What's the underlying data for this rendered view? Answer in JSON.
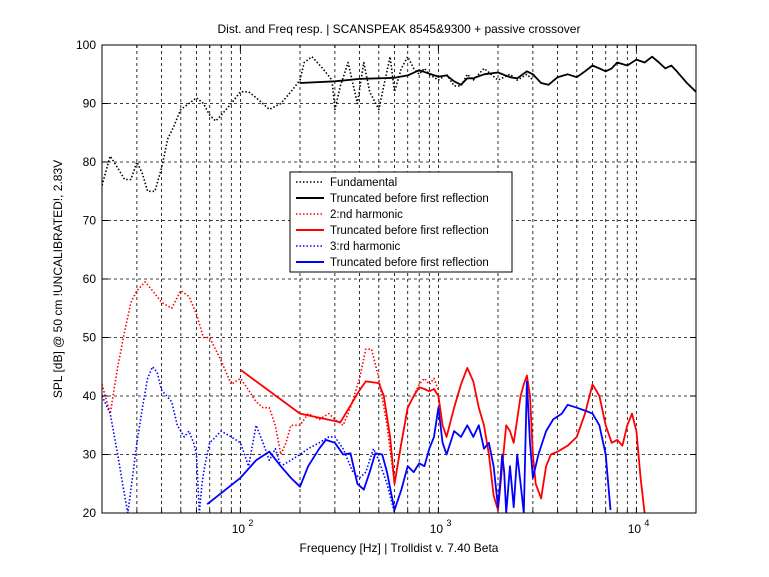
{
  "chart_data": {
    "type": "line",
    "title": "Dist. and Freq resp.  | SCANSPEAK 8545&9300 + passive crossover",
    "xlabel": "Frequency [Hz] | Trolldist v. 7.40 Beta",
    "ylabel": "SPL [dB] @ 50 cm !UNCALIBRATED!, 2.83V",
    "x_scale": "log",
    "xlim": [
      20,
      20000
    ],
    "ylim": [
      20,
      100
    ],
    "grid": true,
    "legend_position": "center",
    "y_ticks": [
      "20",
      "30",
      "40",
      "50",
      "60",
      "70",
      "80",
      "90",
      "100"
    ],
    "x_tick_bases": [
      "10",
      "10",
      "10"
    ],
    "x_tick_exps": [
      "2",
      "3",
      "4"
    ],
    "series": [
      {
        "name": "Fundamental",
        "color": "#000000",
        "style": "dotted",
        "points": [
          [
            20,
            76
          ],
          [
            22,
            81
          ],
          [
            24,
            79
          ],
          [
            26,
            77
          ],
          [
            28,
            77
          ],
          [
            30,
            80
          ],
          [
            32,
            78
          ],
          [
            34,
            75
          ],
          [
            37,
            75
          ],
          [
            40,
            79
          ],
          [
            43,
            84
          ],
          [
            46,
            86
          ],
          [
            50,
            89
          ],
          [
            55,
            90
          ],
          [
            60,
            91
          ],
          [
            65,
            90
          ],
          [
            70,
            88
          ],
          [
            75,
            87
          ],
          [
            80,
            88
          ],
          [
            90,
            90
          ],
          [
            100,
            92
          ],
          [
            110,
            92
          ],
          [
            120,
            91
          ],
          [
            140,
            89
          ],
          [
            160,
            90
          ],
          [
            180,
            92
          ],
          [
            200,
            94
          ],
          [
            210,
            97
          ],
          [
            230,
            98
          ],
          [
            260,
            96
          ],
          [
            290,
            94
          ],
          [
            300,
            89
          ],
          [
            320,
            93
          ],
          [
            350,
            97
          ],
          [
            390,
            90
          ],
          [
            420,
            97
          ],
          [
            450,
            92
          ],
          [
            500,
            89
          ],
          [
            530,
            93
          ],
          [
            570,
            98
          ],
          [
            600,
            92
          ],
          [
            650,
            96
          ],
          [
            700,
            98
          ],
          [
            750,
            96
          ],
          [
            800,
            95
          ],
          [
            850,
            96
          ],
          [
            900,
            95
          ],
          [
            1000,
            94
          ],
          [
            1100,
            95
          ],
          [
            1200,
            93
          ],
          [
            1300,
            93
          ],
          [
            1400,
            95
          ],
          [
            1500,
            94
          ],
          [
            1700,
            96
          ],
          [
            2000,
            94
          ],
          [
            2300,
            95
          ],
          [
            2500,
            94
          ],
          [
            2800,
            95
          ],
          [
            3000,
            94
          ]
        ]
      },
      {
        "name": "Truncated before first reflection",
        "color": "#000000",
        "style": "solid",
        "points": [
          [
            200,
            93.5
          ],
          [
            300,
            93.8
          ],
          [
            400,
            94.2
          ],
          [
            500,
            94.3
          ],
          [
            600,
            94.4
          ],
          [
            700,
            94.8
          ],
          [
            800,
            95.7
          ],
          [
            900,
            95.1
          ],
          [
            1000,
            94.6
          ],
          [
            1100,
            94.8
          ],
          [
            1200,
            93.8
          ],
          [
            1300,
            93.2
          ],
          [
            1400,
            94.3
          ],
          [
            1500,
            94.3
          ],
          [
            1700,
            95
          ],
          [
            2000,
            95.3
          ],
          [
            2300,
            94.5
          ],
          [
            2500,
            94.3
          ],
          [
            2800,
            95.5
          ],
          [
            3000,
            95
          ],
          [
            3300,
            93.5
          ],
          [
            3600,
            93.2
          ],
          [
            4000,
            94.5
          ],
          [
            4500,
            95
          ],
          [
            5000,
            94.5
          ],
          [
            5500,
            95.5
          ],
          [
            6000,
            96.5
          ],
          [
            6500,
            96
          ],
          [
            7000,
            95.5
          ],
          [
            7500,
            96
          ],
          [
            8000,
            97
          ],
          [
            9000,
            96.5
          ],
          [
            10000,
            97.5
          ],
          [
            11000,
            97
          ],
          [
            12000,
            98
          ],
          [
            13000,
            97
          ],
          [
            14000,
            96
          ],
          [
            15000,
            96.5
          ],
          [
            16000,
            95.5
          ],
          [
            18000,
            93.5
          ],
          [
            20000,
            92
          ]
        ]
      },
      {
        "name": "2:nd harmonic",
        "color": "#ff0000",
        "style": "dotted",
        "points": [
          [
            20,
            42
          ],
          [
            22,
            37
          ],
          [
            24,
            45
          ],
          [
            26,
            51
          ],
          [
            28,
            56
          ],
          [
            30,
            58
          ],
          [
            33,
            59.5
          ],
          [
            36,
            58
          ],
          [
            40,
            56
          ],
          [
            45,
            55
          ],
          [
            50,
            58
          ],
          [
            55,
            57
          ],
          [
            60,
            54
          ],
          [
            65,
            50
          ],
          [
            70,
            50
          ],
          [
            80,
            46
          ],
          [
            90,
            42
          ],
          [
            100,
            43
          ],
          [
            110,
            41
          ],
          [
            120,
            39
          ],
          [
            130,
            38
          ],
          [
            140,
            38
          ],
          [
            150,
            35
          ],
          [
            160,
            30
          ],
          [
            170,
            32
          ],
          [
            180,
            35
          ],
          [
            200,
            35
          ],
          [
            220,
            37
          ],
          [
            250,
            36
          ],
          [
            280,
            37
          ],
          [
            300,
            36
          ],
          [
            330,
            35
          ],
          [
            360,
            38
          ],
          [
            400,
            43
          ],
          [
            430,
            48
          ],
          [
            460,
            48
          ],
          [
            500,
            43
          ],
          [
            550,
            35
          ],
          [
            600,
            25
          ],
          [
            650,
            32
          ],
          [
            700,
            38
          ],
          [
            750,
            40
          ],
          [
            800,
            42
          ],
          [
            850,
            43
          ],
          [
            900,
            42
          ],
          [
            950,
            43
          ],
          [
            1000,
            41
          ]
        ]
      },
      {
        "name": "Truncated before first reflection",
        "color": "#ff0000",
        "style": "solid",
        "points": [
          [
            100,
            44.5
          ],
          [
            200,
            37
          ],
          [
            320,
            35.5
          ],
          [
            400,
            41
          ],
          [
            430,
            42.5
          ],
          [
            500,
            42.2
          ],
          [
            530,
            40
          ],
          [
            570,
            33
          ],
          [
            600,
            25
          ],
          [
            650,
            32
          ],
          [
            700,
            38
          ],
          [
            750,
            40
          ],
          [
            800,
            41.5
          ],
          [
            850,
            41.2
          ],
          [
            900,
            40.8
          ],
          [
            950,
            41.2
          ],
          [
            1000,
            40
          ],
          [
            1050,
            35
          ],
          [
            1100,
            33
          ],
          [
            1200,
            38
          ],
          [
            1300,
            42
          ],
          [
            1400,
            44.8
          ],
          [
            1500,
            42.5
          ],
          [
            1600,
            38
          ],
          [
            1700,
            35
          ],
          [
            1800,
            30
          ],
          [
            1900,
            23
          ],
          [
            2000,
            20.5
          ],
          [
            2100,
            28
          ],
          [
            2200,
            35
          ],
          [
            2300,
            34
          ],
          [
            2400,
            32
          ],
          [
            2500,
            36
          ],
          [
            2600,
            40
          ],
          [
            2700,
            42
          ],
          [
            2800,
            43.5
          ],
          [
            2900,
            40
          ],
          [
            3000,
            30
          ],
          [
            3100,
            25
          ],
          [
            3300,
            22.5
          ],
          [
            3500,
            28
          ],
          [
            3700,
            30
          ],
          [
            4000,
            30.5
          ],
          [
            4500,
            31.5
          ],
          [
            5000,
            33
          ],
          [
            5500,
            37
          ],
          [
            6000,
            42
          ],
          [
            6500,
            40
          ],
          [
            7000,
            35
          ],
          [
            7500,
            32
          ],
          [
            8000,
            32.5
          ],
          [
            8500,
            31.5
          ],
          [
            9000,
            35
          ],
          [
            9500,
            37
          ],
          [
            10000,
            34
          ],
          [
            10500,
            26
          ],
          [
            11000,
            20
          ]
        ]
      },
      {
        "name": "3:rd harmonic",
        "color": "#0000ff",
        "style": "dotted",
        "points": [
          [
            20,
            40
          ],
          [
            22,
            37
          ],
          [
            24,
            30
          ],
          [
            26,
            23
          ],
          [
            27,
            20
          ],
          [
            28,
            24
          ],
          [
            30,
            32
          ],
          [
            32,
            38
          ],
          [
            34,
            43
          ],
          [
            36,
            45
          ],
          [
            38,
            44
          ],
          [
            40,
            41
          ],
          [
            45,
            39
          ],
          [
            48,
            35
          ],
          [
            50,
            34
          ],
          [
            52,
            33
          ],
          [
            55,
            34
          ],
          [
            58,
            32
          ],
          [
            60,
            30
          ],
          [
            62,
            20
          ],
          [
            64,
            25
          ],
          [
            66,
            28
          ],
          [
            70,
            32
          ],
          [
            80,
            34
          ],
          [
            90,
            33
          ],
          [
            100,
            32
          ],
          [
            110,
            28
          ],
          [
            120,
            35
          ],
          [
            130,
            32
          ],
          [
            140,
            29
          ],
          [
            150,
            31
          ],
          [
            160,
            28
          ],
          [
            180,
            29
          ],
          [
            200,
            30
          ],
          [
            220,
            31
          ],
          [
            250,
            32
          ],
          [
            280,
            33
          ],
          [
            300,
            33
          ],
          [
            330,
            31
          ],
          [
            370,
            27
          ],
          [
            400,
            26
          ],
          [
            430,
            27
          ],
          [
            470,
            31
          ],
          [
            500,
            29
          ],
          [
            550,
            25
          ],
          [
            600,
            20
          ]
        ]
      },
      {
        "name": "Truncated before first reflection",
        "color": "#0000ff",
        "style": "solid",
        "points": [
          [
            68,
            21.5
          ],
          [
            100,
            26
          ],
          [
            120,
            29
          ],
          [
            140,
            30.5
          ],
          [
            160,
            28
          ],
          [
            180,
            26
          ],
          [
            200,
            24.5
          ],
          [
            220,
            28
          ],
          [
            250,
            31
          ],
          [
            270,
            32.5
          ],
          [
            300,
            32
          ],
          [
            330,
            30
          ],
          [
            360,
            30.2
          ],
          [
            390,
            25
          ],
          [
            420,
            24
          ],
          [
            450,
            27
          ],
          [
            480,
            30.2
          ],
          [
            520,
            30
          ],
          [
            550,
            27
          ],
          [
            600,
            20.5
          ],
          [
            650,
            24
          ],
          [
            700,
            28
          ],
          [
            750,
            27
          ],
          [
            800,
            28.5
          ],
          [
            850,
            28
          ],
          [
            900,
            31
          ],
          [
            950,
            33
          ],
          [
            1000,
            38
          ],
          [
            1050,
            32
          ],
          [
            1100,
            30
          ],
          [
            1200,
            34
          ],
          [
            1300,
            33
          ],
          [
            1400,
            35
          ],
          [
            1500,
            33
          ],
          [
            1600,
            35
          ],
          [
            1700,
            31
          ],
          [
            1800,
            32
          ],
          [
            1900,
            28
          ],
          [
            2000,
            21
          ],
          [
            2050,
            25
          ],
          [
            2100,
            30
          ],
          [
            2150,
            27
          ],
          [
            2200,
            20
          ],
          [
            2300,
            28
          ],
          [
            2400,
            21
          ],
          [
            2500,
            30
          ],
          [
            2600,
            25
          ],
          [
            2700,
            20
          ],
          [
            2800,
            42.5
          ],
          [
            2900,
            32
          ],
          [
            3000,
            26
          ],
          [
            3200,
            30
          ],
          [
            3500,
            34
          ],
          [
            3800,
            36
          ],
          [
            4200,
            37
          ],
          [
            4500,
            38.5
          ],
          [
            5000,
            38
          ],
          [
            5500,
            37.5
          ],
          [
            6000,
            37
          ],
          [
            6500,
            35
          ],
          [
            7000,
            30
          ],
          [
            7400,
            20.5
          ]
        ]
      }
    ]
  }
}
